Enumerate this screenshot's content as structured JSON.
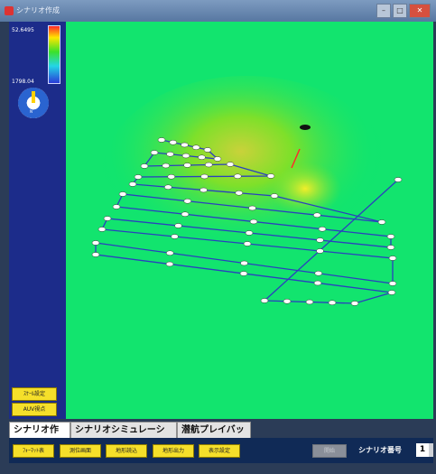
{
  "window": {
    "title": "シナリオ作成 "
  },
  "legend": {
    "max_value": "52.6495",
    "min_value": "1798.04"
  },
  "compass": {
    "label": "N",
    "accent": "#2a64d0"
  },
  "sidebar_buttons": [
    "ｽｹｰﾙ設定",
    "AUV視点"
  ],
  "tabs": [
    {
      "label": "シナリオ作成",
      "active": true
    },
    {
      "label": "シナリオシミュレーション",
      "active": false
    },
    {
      "label": "潜航プレイバック",
      "active": false
    }
  ],
  "toolbar": {
    "buttons": [
      "ﾌｫｰﾏｯﾄ表",
      "測位画面",
      "地形読込",
      "地形出力",
      "表示設定"
    ],
    "disabled_button": "開始",
    "scenario_label": "シナリオ番号",
    "scenario_number": "1"
  },
  "colors": {
    "seafloor": "#00e676",
    "path": "#2b3fbf",
    "waypoint": "#ffffff",
    "button": "#f5df2a"
  }
}
